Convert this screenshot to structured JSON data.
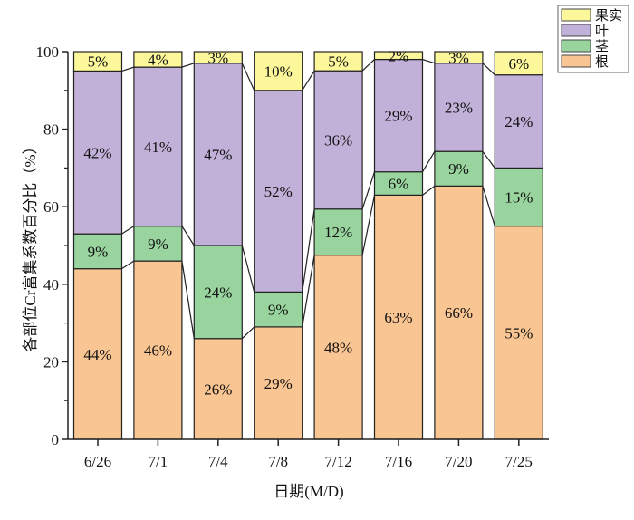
{
  "chart_data": {
    "type": "bar",
    "stacked": true,
    "categories": [
      "6/26",
      "7/1",
      "7/4",
      "7/8",
      "7/12",
      "7/16",
      "7/20",
      "7/25"
    ],
    "series": [
      {
        "name": "根",
        "color": "#f9c592",
        "values": [
          44,
          46,
          26,
          29,
          48,
          63,
          66,
          55
        ]
      },
      {
        "name": "茎",
        "color": "#99d49e",
        "values": [
          9,
          9,
          24,
          9,
          12,
          6,
          9,
          15
        ]
      },
      {
        "name": "叶",
        "color": "#c1b0d8",
        "values": [
          42,
          41,
          47,
          52,
          36,
          29,
          23,
          24
        ]
      },
      {
        "name": "果实",
        "color": "#fbf79a",
        "values": [
          5,
          4,
          3,
          10,
          5,
          2,
          3,
          6
        ]
      }
    ],
    "data_label_suffix": "%",
    "xlabel": "日期(M/D)",
    "ylabel": "各部位Cr富集系数百分比（%）",
    "ylim": [
      0,
      100
    ],
    "yticks": [
      "0",
      "20",
      "40",
      "60",
      "80",
      "100"
    ],
    "grid": false,
    "legend_position": "top-right",
    "legend_order": [
      "果实",
      "叶",
      "茎",
      "根"
    ]
  }
}
